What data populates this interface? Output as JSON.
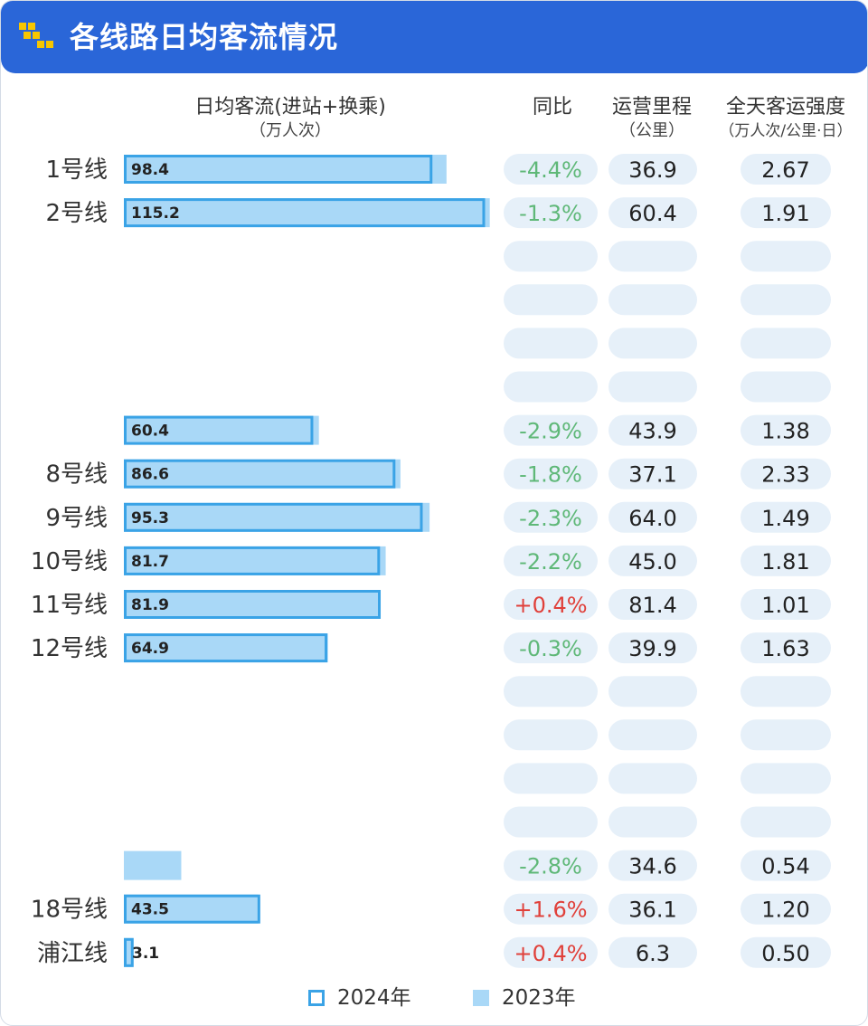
{
  "header": {
    "title": "各线路日均客流情况",
    "logo_icon": "stair-pixel-logo-icon"
  },
  "columns": {
    "ridership": "日均客流(进站+换乘)",
    "ridership_unit": "（万人次）",
    "yoy": "同比",
    "mileage": "运营里程",
    "mileage_unit": "（公里）",
    "intensity": "全天客运强度",
    "intensity_unit": "（万人次/公里·日）"
  },
  "legend": {
    "y2024": "2024年",
    "y2023": "2023年"
  },
  "colors": {
    "header": "#2a66d8",
    "bar_2024_border": "#3aa3e6",
    "bar_2023_fill": "#a9d8f7",
    "pill": "#e6f0f9",
    "negative_text": "#5fb878",
    "positive_text": "#e0403a",
    "logo": "#f7c600"
  },
  "chart_data": {
    "type": "bar",
    "orientation": "horizontal",
    "categories": [
      "1号线",
      "2号线",
      "",
      "",
      "",
      "",
      "",
      "8号线",
      "9号线",
      "10号线",
      "11号线",
      "12号线",
      "",
      "",
      "",
      "",
      "",
      "18号线",
      "浦江线"
    ],
    "series": [
      {
        "name": "2024年",
        "values": [
          98.4,
          115.2,
          null,
          null,
          null,
          null,
          60.4,
          86.6,
          95.3,
          81.7,
          81.9,
          64.9,
          null,
          null,
          null,
          null,
          null,
          43.5,
          3.1
        ]
      },
      {
        "name": "2023年",
        "values": [
          102.9,
          116.7,
          null,
          null,
          null,
          null,
          62.2,
          88.2,
          97.5,
          83.5,
          81.6,
          65.1,
          null,
          null,
          null,
          null,
          18.3,
          42.8,
          3.1
        ]
      }
    ],
    "value_labels": [
      "98.4",
      "115.2",
      "",
      "",
      "",
      "",
      "60.4",
      "86.6",
      "95.3",
      "81.7",
      "81.9",
      "64.9",
      "",
      "",
      "",
      "",
      "",
      "43.5",
      "3.1"
    ],
    "yoy": [
      "-4.4%",
      "-1.3%",
      "",
      "",
      "",
      "",
      "-2.9%",
      "-1.8%",
      "-2.3%",
      "-2.2%",
      "+0.4%",
      "-0.3%",
      "",
      "",
      "",
      "",
      "-2.8%",
      "+1.6%",
      "+0.4%"
    ],
    "mileage": [
      "36.9",
      "60.4",
      "",
      "",
      "",
      "",
      "43.9",
      "37.1",
      "64.0",
      "45.0",
      "81.4",
      "39.9",
      "",
      "",
      "",
      "",
      "34.6",
      "36.1",
      "6.3"
    ],
    "intensity": [
      "2.67",
      "1.91",
      "",
      "",
      "",
      "",
      "1.38",
      "2.33",
      "1.49",
      "1.81",
      "1.01",
      "1.63",
      "",
      "",
      "",
      "",
      "0.54",
      "1.20",
      "0.50"
    ],
    "xlim": [
      0,
      116.5
    ],
    "legend_position": "bottom"
  }
}
